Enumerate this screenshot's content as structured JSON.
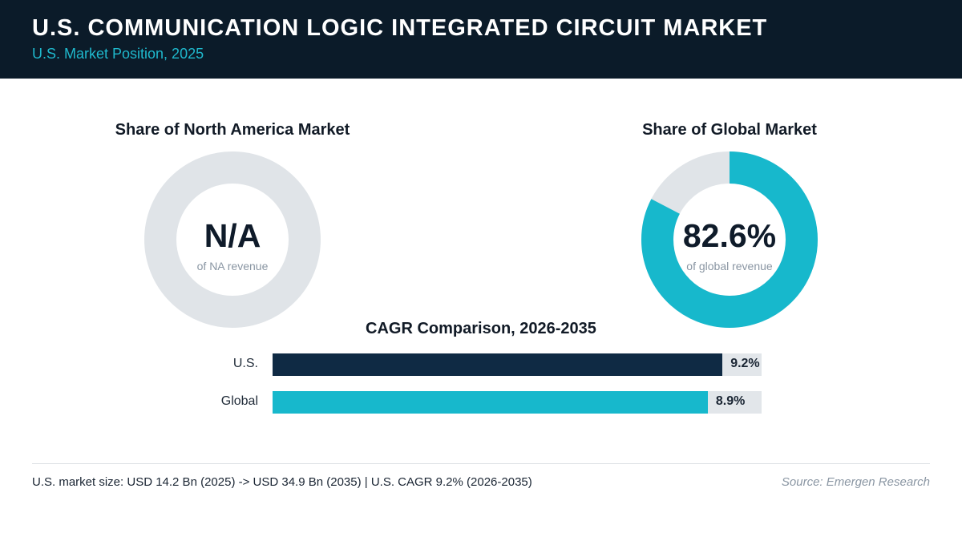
{
  "header": {
    "title": "U.S. COMMUNICATION LOGIC INTEGRATED CIRCUIT MARKET",
    "subtitle": "U.S. Market Position, 2025"
  },
  "colors": {
    "header_bg": "#0b1b29",
    "accent": "#17b8cc",
    "navy": "#0f2a44",
    "track": "#e2e6ea"
  },
  "chart_data": [
    {
      "type": "pie",
      "title": "Share of North America Market",
      "center_label": "N/A",
      "caption": "of NA revenue",
      "share_percent": null
    },
    {
      "type": "pie",
      "title": "Share of Global Market",
      "center_label": "82.6%",
      "caption": "of global revenue",
      "share_percent": 82.6
    },
    {
      "type": "bar",
      "title": "CAGR Comparison, 2026-2035",
      "orientation": "horizontal",
      "categories": [
        "U.S.",
        "Global"
      ],
      "values": [
        9.2,
        8.9
      ],
      "value_labels": [
        "9.2%",
        "8.9%"
      ],
      "xlim": [
        0,
        10
      ]
    }
  ],
  "footer": {
    "note": "U.S. market size: USD 14.2 Bn (2025) -> USD 34.9 Bn (2035)  |  U.S. CAGR 9.2% (2026-2035)",
    "source": "Source: Emergen Research"
  }
}
